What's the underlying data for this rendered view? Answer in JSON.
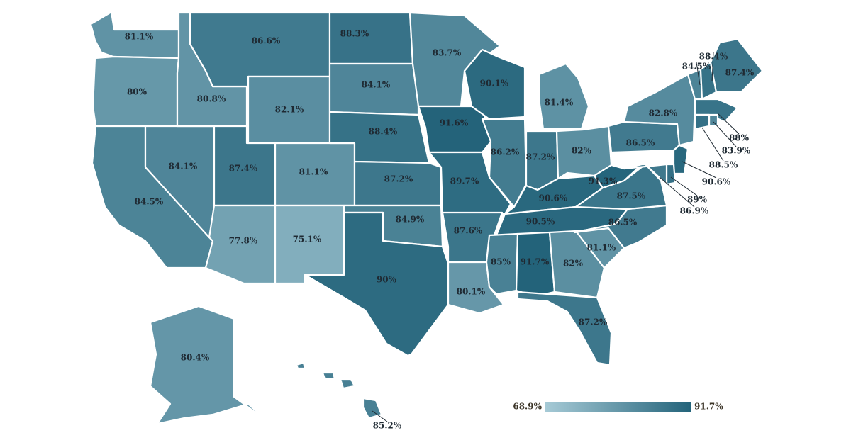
{
  "colors": {
    "low": "#a6cad6",
    "high": "#23637a",
    "border": "#ffffff"
  },
  "legend": {
    "min_label": "68.9%",
    "max_label": "91.7%",
    "min": 68.9,
    "max": 91.7
  },
  "states": [
    {
      "code": "WA",
      "value": 81.1,
      "label": "81.1%"
    },
    {
      "code": "OR",
      "value": 80.0,
      "label": "80%"
    },
    {
      "code": "CA",
      "value": 84.5,
      "label": "84.5%"
    },
    {
      "code": "NV",
      "value": 84.1,
      "label": "84.1%"
    },
    {
      "code": "ID",
      "value": 80.8,
      "label": "80.8%"
    },
    {
      "code": "MT",
      "value": 86.6,
      "label": "86.6%"
    },
    {
      "code": "WY",
      "value": 82.1,
      "label": "82.1%"
    },
    {
      "code": "UT",
      "value": 87.4,
      "label": "87.4%"
    },
    {
      "code": "AZ",
      "value": 77.8,
      "label": "77.8%"
    },
    {
      "code": "CO",
      "value": 81.1,
      "label": "81.1%"
    },
    {
      "code": "NM",
      "value": 75.1,
      "label": "75.1%"
    },
    {
      "code": "ND",
      "value": 88.3,
      "label": "88.3%"
    },
    {
      "code": "SD",
      "value": 84.1,
      "label": "84.1%"
    },
    {
      "code": "NE",
      "value": 88.4,
      "label": "88.4%"
    },
    {
      "code": "KS",
      "value": 87.2,
      "label": "87.2%"
    },
    {
      "code": "OK",
      "value": 84.9,
      "label": "84.9%"
    },
    {
      "code": "TX",
      "value": 90.0,
      "label": "90%"
    },
    {
      "code": "MN",
      "value": 83.7,
      "label": "83.7%"
    },
    {
      "code": "IA",
      "value": 91.6,
      "label": "91.6%"
    },
    {
      "code": "MO",
      "value": 89.7,
      "label": "89.7%"
    },
    {
      "code": "AR",
      "value": 87.6,
      "label": "87.6%"
    },
    {
      "code": "LA",
      "value": 80.1,
      "label": "80.1%"
    },
    {
      "code": "WI",
      "value": 90.1,
      "label": "90.1%"
    },
    {
      "code": "IL",
      "value": 86.2,
      "label": "86.2%"
    },
    {
      "code": "MI",
      "value": 81.4,
      "label": "81.4%"
    },
    {
      "code": "IN",
      "value": 87.2,
      "label": "87.2%"
    },
    {
      "code": "OH",
      "value": 82.0,
      "label": "82%"
    },
    {
      "code": "KY",
      "value": 90.6,
      "label": "90.6%"
    },
    {
      "code": "TN",
      "value": 90.5,
      "label": "90.5%"
    },
    {
      "code": "MS",
      "value": 85.0,
      "label": "85%"
    },
    {
      "code": "AL",
      "value": 91.7,
      "label": "91.7%"
    },
    {
      "code": "GA",
      "value": 82.0,
      "label": "82%"
    },
    {
      "code": "FL",
      "value": 87.2,
      "label": "87.2%"
    },
    {
      "code": "SC",
      "value": 81.1,
      "label": "81.1%"
    },
    {
      "code": "NC",
      "value": 86.5,
      "label": "86.5%"
    },
    {
      "code": "VA",
      "value": 87.5,
      "label": "87.5%"
    },
    {
      "code": "WV",
      "value": 91.3,
      "label": "91.3%"
    },
    {
      "code": "PA",
      "value": 86.5,
      "label": "86.5%"
    },
    {
      "code": "NY",
      "value": 82.8,
      "label": "82.8%"
    },
    {
      "code": "VT",
      "value": 84.5,
      "label": "84.5%"
    },
    {
      "code": "NH",
      "value": 88.4,
      "label": "88.4%"
    },
    {
      "code": "ME",
      "value": 87.4,
      "label": "87.4%"
    },
    {
      "code": "MA",
      "value": 88.0,
      "label": "88%"
    },
    {
      "code": "RI",
      "value": 83.9,
      "label": "83.9%"
    },
    {
      "code": "CT",
      "value": 88.5,
      "label": "88.5%"
    },
    {
      "code": "NJ",
      "value": 90.6,
      "label": "90.6%"
    },
    {
      "code": "DE",
      "value": 89.0,
      "label": "89%"
    },
    {
      "code": "MD",
      "value": 86.9,
      "label": "86.9%"
    },
    {
      "code": "AK",
      "value": 80.4,
      "label": "80.4%"
    },
    {
      "code": "HI",
      "value": 85.2,
      "label": "85.2%"
    }
  ]
}
